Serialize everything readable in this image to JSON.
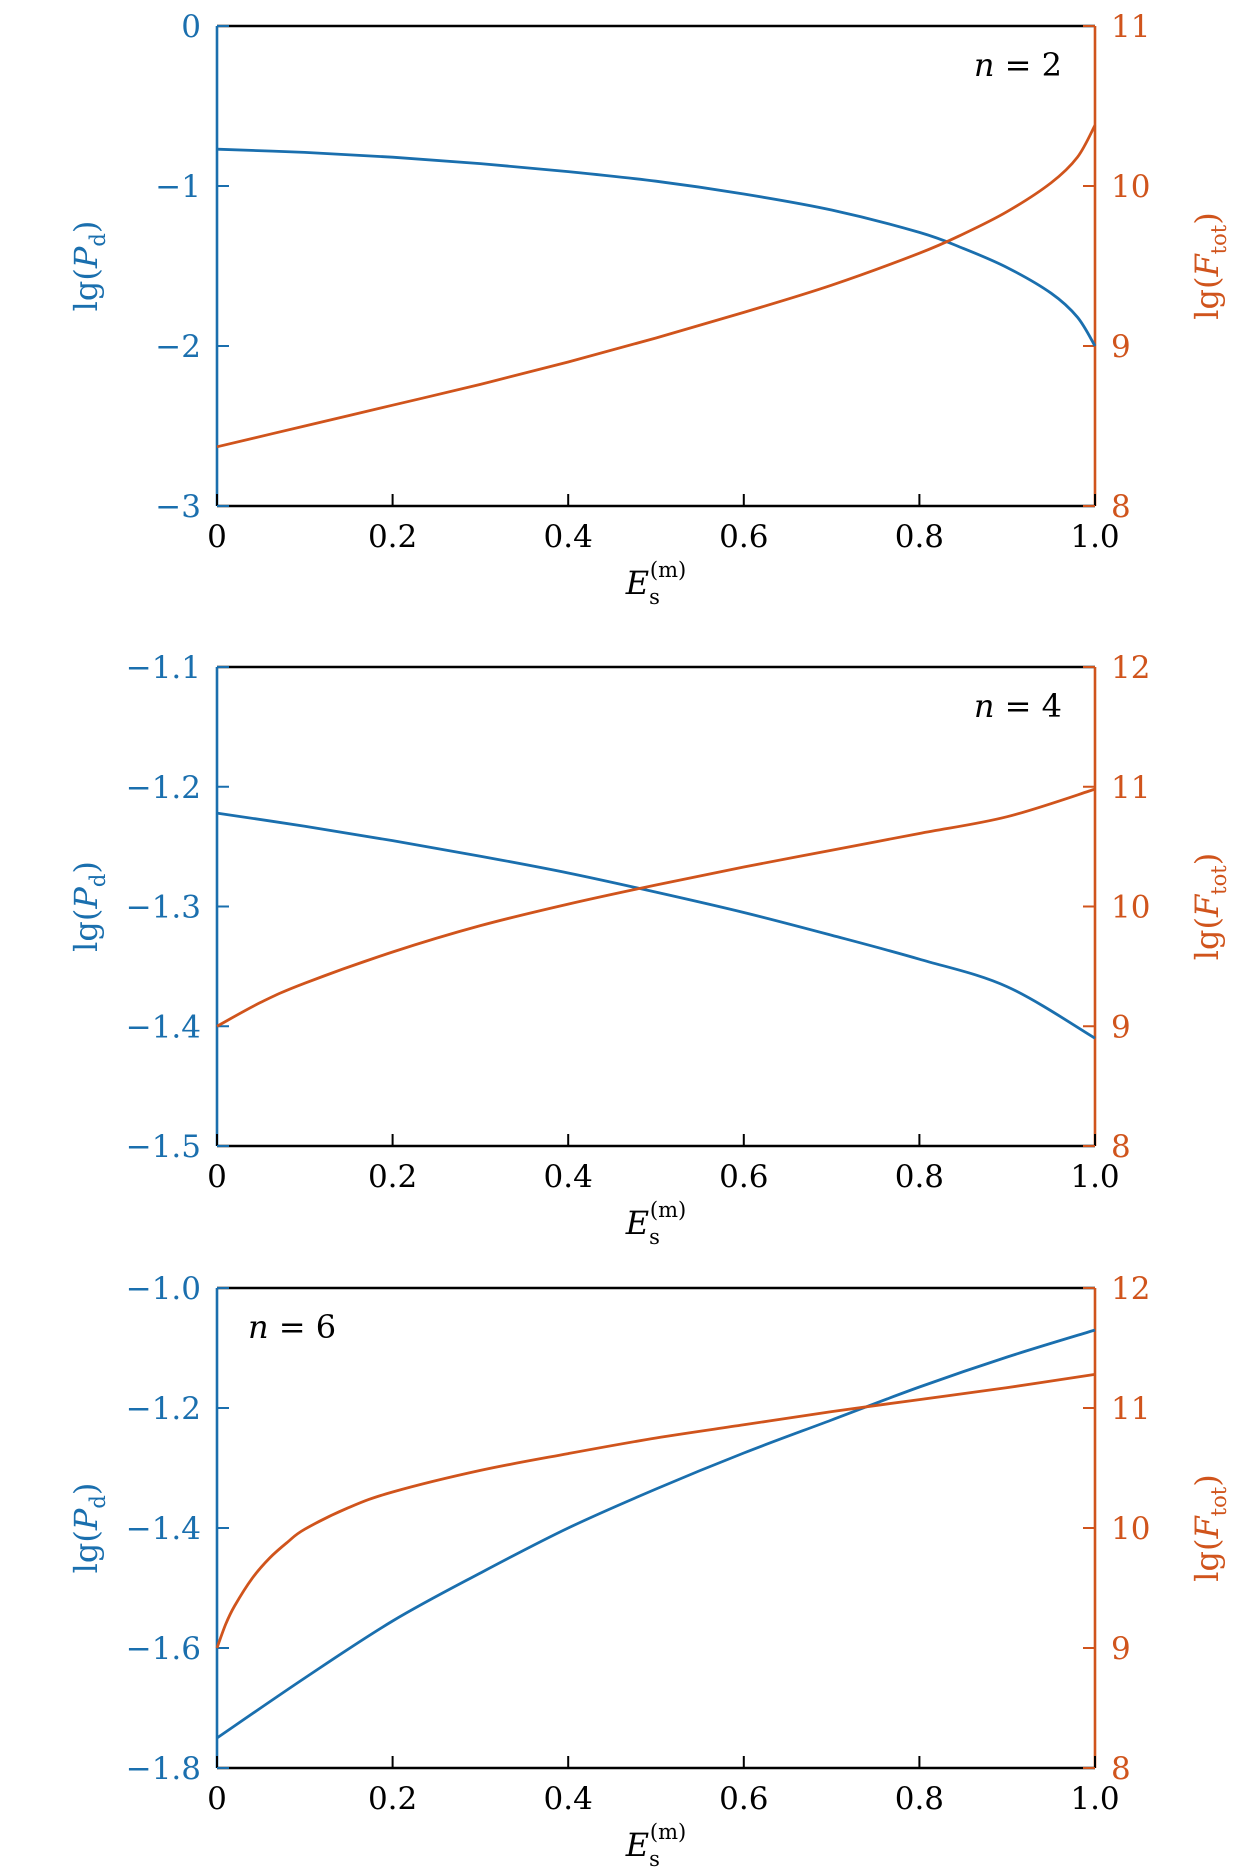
{
  "colors": {
    "left": "#1a6fae",
    "right": "#d0541c",
    "frame": "#000000"
  },
  "chart_data": [
    {
      "type": "line",
      "annotation": "n = 2",
      "annotation_pos": "top-right",
      "xlabel": "E_s^(m)",
      "ylabel_left": "lg(P_d)",
      "ylabel_right": "lg(F_tot)",
      "xlim": [
        0,
        1
      ],
      "ylim_left": [
        -3,
        0
      ],
      "ylim_right": [
        8,
        11
      ],
      "x_ticks": [
        "0",
        "0.2",
        "0.4",
        "0.6",
        "0.8",
        "1.0"
      ],
      "y_ticks_left": [
        "−3",
        "−2",
        "−1",
        "0"
      ],
      "y_ticks_right": [
        "8",
        "9",
        "10",
        "11"
      ],
      "series": [
        {
          "axis": "left",
          "x": [
            0,
            0.1,
            0.2,
            0.3,
            0.4,
            0.5,
            0.6,
            0.7,
            0.8,
            0.85,
            0.9,
            0.95,
            0.98,
            1.0
          ],
          "y": [
            -0.77,
            -0.79,
            -0.82,
            -0.86,
            -0.91,
            -0.97,
            -1.05,
            -1.15,
            -1.29,
            -1.39,
            -1.51,
            -1.67,
            -1.82,
            -2.0
          ]
        },
        {
          "axis": "right",
          "x": [
            0,
            0.1,
            0.2,
            0.3,
            0.4,
            0.5,
            0.6,
            0.7,
            0.8,
            0.85,
            0.9,
            0.95,
            0.98,
            1.0
          ],
          "y": [
            8.37,
            8.5,
            8.63,
            8.76,
            8.9,
            9.05,
            9.21,
            9.38,
            9.58,
            9.7,
            9.84,
            10.02,
            10.18,
            10.38
          ]
        }
      ]
    },
    {
      "type": "line",
      "annotation": "n = 4",
      "annotation_pos": "top-right",
      "xlabel": "E_s^(m)",
      "ylabel_left": "lg(P_d)",
      "ylabel_right": "lg(F_tot)",
      "xlim": [
        0,
        1
      ],
      "ylim_left": [
        -1.5,
        -1.1
      ],
      "ylim_right": [
        8,
        12
      ],
      "x_ticks": [
        "0",
        "0.2",
        "0.4",
        "0.6",
        "0.8",
        "1.0"
      ],
      "y_ticks_left": [
        "−1.5",
        "−1.4",
        "−1.3",
        "−1.2",
        "−1.1"
      ],
      "y_ticks_right": [
        "8",
        "9",
        "10",
        "11",
        "12"
      ],
      "series": [
        {
          "axis": "left",
          "x": [
            0,
            0.1,
            0.2,
            0.3,
            0.4,
            0.5,
            0.6,
            0.7,
            0.8,
            0.9,
            1.0
          ],
          "y": [
            -1.222,
            -1.233,
            -1.245,
            -1.258,
            -1.272,
            -1.288,
            -1.305,
            -1.324,
            -1.344,
            -1.367,
            -1.41
          ]
        },
        {
          "axis": "right",
          "x": [
            0,
            0.05,
            0.1,
            0.2,
            0.3,
            0.4,
            0.5,
            0.6,
            0.7,
            0.8,
            0.9,
            1.0
          ],
          "y": [
            9.0,
            9.2,
            9.36,
            9.62,
            9.84,
            10.02,
            10.18,
            10.33,
            10.47,
            10.61,
            10.75,
            10.98
          ]
        }
      ]
    },
    {
      "type": "line",
      "annotation": "n = 6",
      "annotation_pos": "top-left",
      "xlabel": "E_s^(m)",
      "ylabel_left": "lg(P_d)",
      "ylabel_right": "lg(F_tot)",
      "xlim": [
        0,
        1
      ],
      "ylim_left": [
        -1.8,
        -1.0
      ],
      "ylim_right": [
        8,
        12
      ],
      "x_ticks": [
        "0",
        "0.2",
        "0.4",
        "0.6",
        "0.8",
        "1.0"
      ],
      "y_ticks_left": [
        "−1.8",
        "−1.6",
        "−1.4",
        "−1.2",
        "−1.0"
      ],
      "y_ticks_right": [
        "8",
        "9",
        "10",
        "11",
        "12"
      ],
      "series": [
        {
          "axis": "left",
          "x": [
            0,
            0.1,
            0.2,
            0.3,
            0.4,
            0.5,
            0.6,
            0.7,
            0.8,
            0.9,
            1.0
          ],
          "y": [
            -1.75,
            -1.65,
            -1.555,
            -1.475,
            -1.4,
            -1.335,
            -1.275,
            -1.22,
            -1.165,
            -1.115,
            -1.07
          ]
        },
        {
          "axis": "right",
          "x": [
            0,
            0.01,
            0.02,
            0.04,
            0.06,
            0.08,
            0.1,
            0.15,
            0.2,
            0.3,
            0.4,
            0.5,
            0.6,
            0.7,
            0.8,
            0.9,
            1.0
          ],
          "y": [
            9.0,
            9.2,
            9.35,
            9.58,
            9.75,
            9.88,
            9.99,
            10.17,
            10.3,
            10.48,
            10.62,
            10.75,
            10.86,
            10.97,
            11.07,
            11.17,
            11.28
          ]
        }
      ]
    }
  ]
}
